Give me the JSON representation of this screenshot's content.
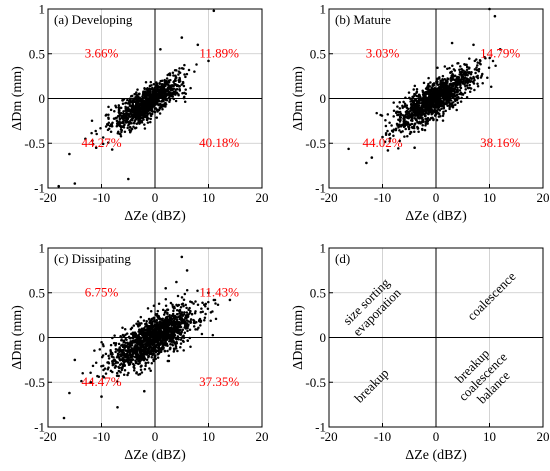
{
  "chart_data": [
    {
      "type": "scatter",
      "title": "(a) Developing",
      "xlabel": "ΔZe (dBZ)",
      "ylabel": "ΔDm (mm)",
      "xlim": [
        -20,
        20
      ],
      "ylim": [
        -1,
        1
      ],
      "xticks": [
        "-20",
        "-10",
        "0",
        "10",
        "20"
      ],
      "yticks": [
        "-1",
        "-0.5",
        "0",
        "0.5",
        "1"
      ],
      "grid": true,
      "marker_color": "#000000",
      "quadrant_labels": {
        "top_left": "3.66%",
        "top_right": "11.89%",
        "bottom_left": "44.27%",
        "bottom_right": "40.18%"
      },
      "quadrant_color": "#ff0000",
      "cloud": {
        "x_center": -1.5,
        "x_spread": 3.2,
        "slope": 0.035,
        "y_noise": 0.09,
        "points": 1000
      },
      "outliers": [
        {
          "x": 11,
          "y": 0.98
        },
        {
          "x": 8,
          "y": 0.6
        },
        {
          "x": -16,
          "y": -0.62
        },
        {
          "x": -18,
          "y": -0.98
        },
        {
          "x": -15,
          "y": -0.95
        },
        {
          "x": -5,
          "y": -0.9
        },
        {
          "x": -11,
          "y": -0.55
        },
        {
          "x": 1,
          "y": 0.55
        },
        {
          "x": 5,
          "y": 0.68
        },
        {
          "x": -13,
          "y": -0.45
        },
        {
          "x": 10,
          "y": 0.42
        },
        {
          "x": -8,
          "y": -0.57
        }
      ]
    },
    {
      "type": "scatter",
      "title": "(b) Mature",
      "xlabel": "ΔZe (dBZ)",
      "ylabel": "ΔDm (mm)",
      "xlim": [
        -20,
        20
      ],
      "ylim": [
        -1,
        1
      ],
      "xticks": [
        "-20",
        "-10",
        "0",
        "10",
        "20"
      ],
      "yticks": [
        "-1",
        "-0.5",
        "0",
        "0.5",
        "1"
      ],
      "grid": true,
      "marker_color": "#000000",
      "quadrant_labels": {
        "top_left": "3.03%",
        "top_right": "14.79%",
        "bottom_left": "44.02%",
        "bottom_right": "38.16%"
      },
      "quadrant_color": "#ff0000",
      "cloud": {
        "x_center": -0.5,
        "x_spread": 3.6,
        "slope": 0.036,
        "y_noise": 0.1,
        "points": 1300
      },
      "outliers": [
        {
          "x": 10,
          "y": 1.0
        },
        {
          "x": 11,
          "y": 0.92
        },
        {
          "x": -13,
          "y": -0.72
        },
        {
          "x": -12,
          "y": -0.66
        },
        {
          "x": 7,
          "y": 0.6
        },
        {
          "x": -9,
          "y": -0.58
        },
        {
          "x": 3,
          "y": 0.62
        },
        {
          "x": -4,
          "y": -0.55
        },
        {
          "x": 12,
          "y": 0.55
        },
        {
          "x": -10,
          "y": -0.43
        }
      ]
    },
    {
      "type": "scatter",
      "title": "(c) Dissipating",
      "xlabel": "ΔZe (dBZ)",
      "ylabel": "ΔDm (mm)",
      "xlim": [
        -20,
        20
      ],
      "ylim": [
        -1,
        1
      ],
      "xticks": [
        "-20",
        "-10",
        "0",
        "10",
        "20"
      ],
      "yticks": [
        "-1",
        "-0.5",
        "0",
        "0.5",
        "1"
      ],
      "grid": true,
      "marker_color": "#000000",
      "quadrant_labels": {
        "top_left": "6.75%",
        "top_right": "11.43%",
        "bottom_left": "44.47%",
        "bottom_right": "37.35%"
      },
      "quadrant_color": "#ff0000",
      "cloud": {
        "x_center": -0.5,
        "x_spread": 4.0,
        "slope": 0.03,
        "y_noise": 0.12,
        "points": 1500
      },
      "outliers": [
        {
          "x": 5,
          "y": 0.9
        },
        {
          "x": 6,
          "y": 0.75
        },
        {
          "x": 4,
          "y": 0.62
        },
        {
          "x": 2,
          "y": 0.55
        },
        {
          "x": -17,
          "y": -0.9
        },
        {
          "x": -16,
          "y": -0.62
        },
        {
          "x": -12,
          "y": -0.5
        },
        {
          "x": -7,
          "y": -0.78
        },
        {
          "x": -10,
          "y": -0.66
        },
        {
          "x": -15,
          "y": -0.25
        },
        {
          "x": 14,
          "y": 0.42
        },
        {
          "x": 10,
          "y": 0.5
        },
        {
          "x": -2,
          "y": -0.6
        }
      ]
    },
    {
      "type": "other",
      "title": "(d)",
      "xlabel": "ΔZe (dBZ)",
      "ylabel": "ΔDm (mm)",
      "xlim": [
        -20,
        20
      ],
      "ylim": [
        -1,
        1
      ],
      "xticks": [
        "-20",
        "-10",
        "0",
        "10",
        "20"
      ],
      "yticks": [
        "-1",
        "-0.5",
        "0",
        "0.5",
        "1"
      ],
      "grid": true,
      "annotations": {
        "top_left": [
          "size sorting",
          "evaporation"
        ],
        "top_right": [
          "coalescence"
        ],
        "bottom_left": [
          "breakup"
        ],
        "bottom_right": [
          "breakup",
          "coalescence",
          "balance"
        ]
      }
    }
  ]
}
